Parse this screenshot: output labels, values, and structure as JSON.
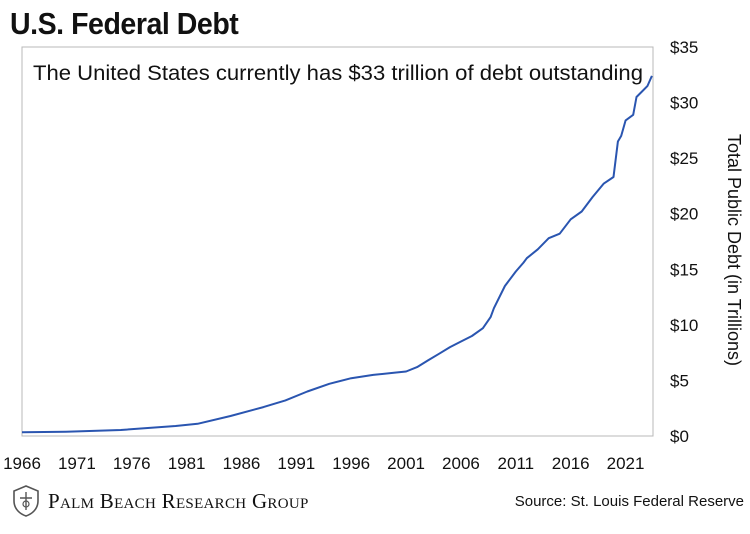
{
  "header": {
    "title": "U.S. Federal Debt"
  },
  "chart_data": {
    "type": "line",
    "title": "U.S. Federal Debt",
    "subtitle": "The United States currently has $33 trillion of debt outstanding",
    "xlabel": "",
    "ylabel": "Total Public Debt (in Trillions)",
    "xlim": [
      1966,
      2023.5
    ],
    "ylim": [
      0,
      35
    ],
    "x_ticks": [
      "1966",
      "1971",
      "1976",
      "1981",
      "1986",
      "1991",
      "1996",
      "2001",
      "2006",
      "2011",
      "2016",
      "2021"
    ],
    "y_ticks": [
      "$0",
      "$5",
      "$10",
      "$15",
      "$20",
      "$25",
      "$30",
      "$35"
    ],
    "y_tick_values": [
      0,
      5,
      10,
      15,
      20,
      25,
      30,
      35
    ],
    "grid": false,
    "line_color": "#2a55b0",
    "series": [
      {
        "x": [
          1966,
          1970,
          1975,
          1980,
          1982,
          1985,
          1988,
          1990,
          1992,
          1994,
          1996,
          1998,
          2000,
          2001,
          2002,
          2003,
          2004,
          2005,
          2006,
          2007,
          2008,
          2008.7,
          2009,
          2010,
          2011,
          2011.7,
          2012,
          2013,
          2014,
          2015,
          2016,
          2017,
          2018,
          2019,
          2019.9,
          2020.3,
          2020.6,
          2021,
          2021.7,
          2022,
          2022.5,
          2023,
          2023.4
        ],
        "y": [
          0.33,
          0.38,
          0.54,
          0.9,
          1.1,
          1.8,
          2.6,
          3.2,
          4.0,
          4.7,
          5.2,
          5.5,
          5.7,
          5.8,
          6.2,
          6.8,
          7.4,
          8.0,
          8.5,
          9.0,
          9.7,
          10.7,
          11.5,
          13.5,
          14.8,
          15.6,
          16.0,
          16.8,
          17.8,
          18.2,
          19.5,
          20.2,
          21.5,
          22.7,
          23.3,
          26.5,
          27.0,
          28.4,
          28.9,
          30.5,
          31.0,
          31.5,
          32.4
        ]
      }
    ]
  },
  "footer": {
    "brand": "Palm Beach Research Group",
    "source": "Source: St. Louis Federal Reserve"
  }
}
